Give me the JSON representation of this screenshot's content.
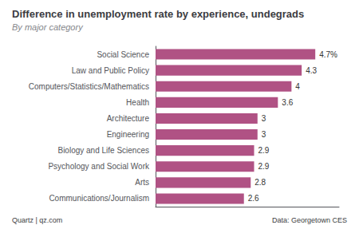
{
  "chart_data": {
    "type": "bar",
    "orientation": "horizontal",
    "title": "Difference in unemployment rate by experience, undegrads",
    "subtitle": "By major category",
    "annotations": [
      "Quartz | qz.com",
      "Data: Georgetown CES"
    ],
    "categories": [
      "Social Science",
      "Law and Public Policy",
      "Computers/Statistics/Mathematics",
      "Health",
      "Architecture",
      "Engineering",
      "Biology and Life Sciences",
      "Psychology and Social Work",
      "Arts",
      "Communications/Journalism"
    ],
    "values": [
      4.7,
      4.3,
      4.0,
      3.6,
      3.0,
      3.0,
      2.9,
      2.9,
      2.8,
      2.6
    ],
    "value_labels": [
      "4.7%",
      "4.3",
      "4",
      "3.6",
      "3",
      "3",
      "2.9",
      "2.9",
      "2.8",
      "2.6"
    ],
    "data_labels": true,
    "color": "#b05284",
    "xlim": [
      0,
      5.4
    ],
    "tick_labels": "y",
    "grid": false
  }
}
